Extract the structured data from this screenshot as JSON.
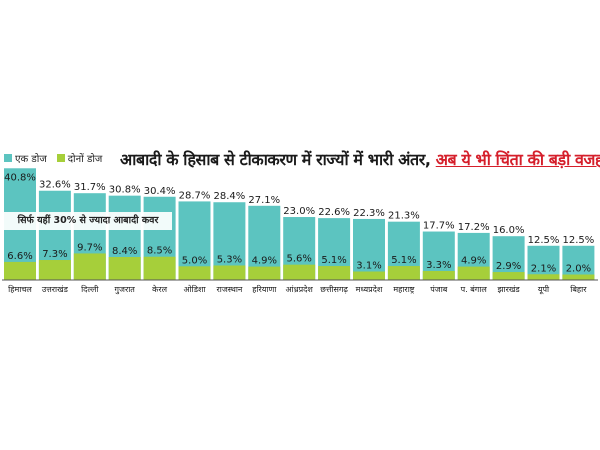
{
  "legend": {
    "one_dose": "एक डोज",
    "two_dose": "दोनों डोज"
  },
  "title": {
    "main": "आबादी के हिसाब से टीकाकरण में राज्यों में भारी अंतर,",
    "highlight": "अब ये भी चिंता की बड़ी वजह"
  },
  "note": "सिर्फ यहीं 30% से ज्यादा आबादी कवर",
  "colors": {
    "one_dose": "#5cc4c0",
    "two_dose": "#a6cf3a",
    "highlight": "#d51f2b"
  },
  "chart_data": {
    "type": "bar",
    "categories": [
      "हिमाचल",
      "उत्तराखंड",
      "दिल्ली",
      "गुजरात",
      "केरल",
      "ओडिशा",
      "राजस्थान",
      "हरियाणा",
      "आंध्रप्रदेश",
      "छत्तीसगढ़",
      "मध्यप्रदेश",
      "महाराष्ट्र",
      "पंजाब",
      "प. बंगाल",
      "झारखंड",
      "यूपी",
      "बिहार"
    ],
    "series": [
      {
        "name": "एक डोज",
        "values": [
          40.8,
          32.6,
          31.7,
          30.8,
          30.4,
          28.7,
          28.4,
          27.1,
          23.0,
          22.6,
          22.3,
          21.3,
          17.7,
          17.2,
          16.0,
          12.5,
          12.5
        ],
        "labels": [
          "40.8%",
          "32.6%",
          "31.7%",
          "30.8%",
          "30.4%",
          "28.7%",
          "28.4%",
          "27.1%",
          "23.0%",
          "22.6%",
          "22.3%",
          "21.3%",
          "17.7%",
          "17.2%",
          "16.0%",
          "12.5%",
          "12.5%"
        ]
      },
      {
        "name": "दोनों डोज",
        "values": [
          6.6,
          7.3,
          9.7,
          8.4,
          8.5,
          5.0,
          5.3,
          4.9,
          5.6,
          5.1,
          3.1,
          5.1,
          3.3,
          4.9,
          2.9,
          2.1,
          2.0
        ],
        "labels": [
          "6.6%",
          "7.3%",
          "9.7%",
          "8.4%",
          "8.5%",
          "5.0%",
          "5.3%",
          "4.9%",
          "5.6%",
          "5.1%",
          "3.1%",
          "5.1%",
          "3.3%",
          "4.9%",
          "2.9%",
          "2.1%",
          "2.0%"
        ]
      }
    ],
    "ylim": [
      0,
      42
    ],
    "legend_position": "top-left"
  }
}
